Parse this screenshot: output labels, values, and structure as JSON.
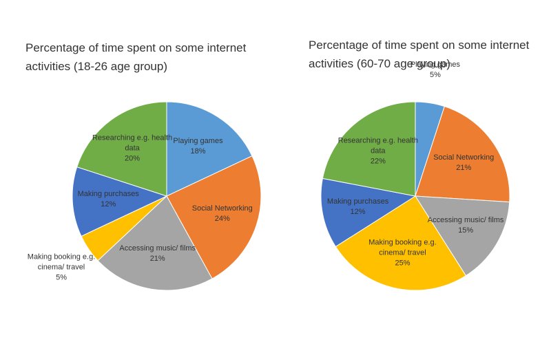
{
  "chart_data": [
    {
      "type": "pie",
      "title": "Percentage of time spent on some internet activities (18-26 age group)",
      "categories": [
        "Playing games",
        "Social Networking",
        "Accessing music/ films",
        "Making booking e.g. cinema/ travel",
        "Making purchases",
        "Researching e.g. health data"
      ],
      "values": [
        18,
        24,
        21,
        5,
        12,
        20
      ],
      "value_labels": [
        "18%",
        "24%",
        "21%",
        "5%",
        "12%",
        "20%"
      ],
      "colors": [
        "#5b9bd5",
        "#ed7d31",
        "#a5a5a5",
        "#ffc000",
        "#4472c4",
        "#70ad47"
      ]
    },
    {
      "type": "pie",
      "title": "Percentage of time spent on some internet activities (60-70 age group)",
      "categories": [
        "Playing games",
        "Social Networking",
        "Accessing music/ films",
        "Making booking e.g. cinema/ travel",
        "Making purchases",
        "Researching e.g. health data"
      ],
      "values": [
        5,
        21,
        15,
        25,
        12,
        22
      ],
      "value_labels": [
        "5%",
        "21%",
        "15%",
        "25%",
        "12%",
        "22%"
      ],
      "colors": [
        "#5b9bd5",
        "#ed7d31",
        "#a5a5a5",
        "#ffc000",
        "#4472c4",
        "#70ad47"
      ]
    }
  ]
}
